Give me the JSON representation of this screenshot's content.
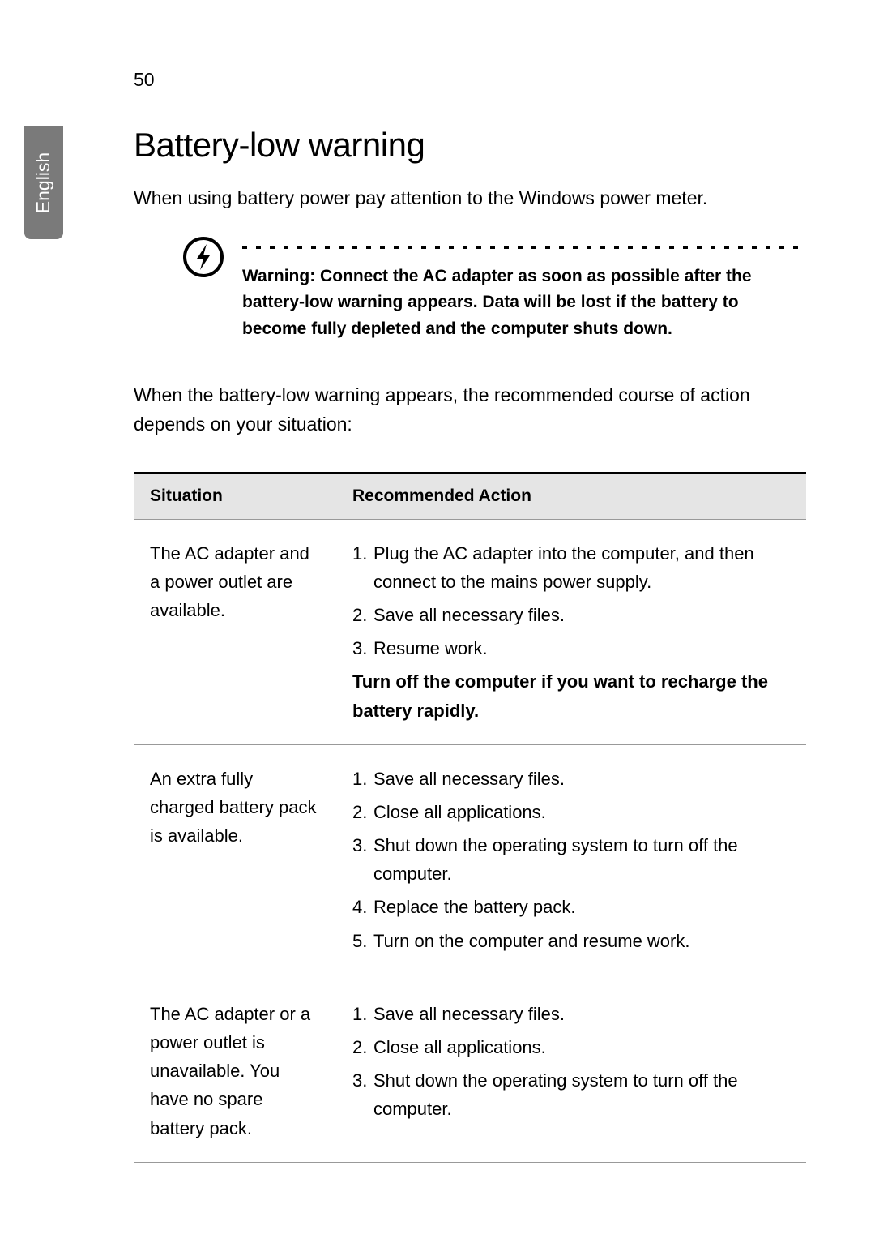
{
  "page": {
    "number": "50",
    "language_tab": "English"
  },
  "heading": "Battery-low warning",
  "intro": "When using battery power pay attention to the Windows power meter.",
  "warning": {
    "text": "Warning: Connect the AC adapter as soon as possible after the battery-low warning appears. Data will be lost if the battery to become fully depleted and the computer shuts down."
  },
  "lead_in": "When the battery-low warning appears, the recommended course of action depends on your situation:",
  "table": {
    "columns": [
      "Situation",
      "Recommended Action"
    ],
    "rows": [
      {
        "situation": "The AC adapter and a power outlet are available.",
        "actions": [
          "Plug the AC adapter into the computer, and then connect to the mains power supply.",
          "Save all necessary files.",
          "Resume work."
        ],
        "bold_note": "Turn off the computer if you want to recharge the battery rapidly."
      },
      {
        "situation": "An extra fully charged battery pack is available.",
        "actions": [
          "Save all necessary files.",
          "Close all applications.",
          "Shut down the operating system to turn off the computer.",
          "Replace the battery pack.",
          "Turn on the computer and resume work."
        ],
        "bold_note": ""
      },
      {
        "situation": "The AC adapter or a power outlet is unavailable. You have no spare battery pack.",
        "actions": [
          "Save all necessary files.",
          "Close all applications.",
          "Shut down the operating system to turn off the computer."
        ],
        "bold_note": ""
      }
    ]
  },
  "styles": {
    "page_bg": "#ffffff",
    "tab_bg": "#7a7a7a",
    "tab_text_color": "#ffffff",
    "thead_bg": "#e5e5e5",
    "border_color": "#999999",
    "heading_fontsize": 42,
    "body_fontsize": 23,
    "warning_fontsize": 21,
    "table_fontsize": 22
  }
}
